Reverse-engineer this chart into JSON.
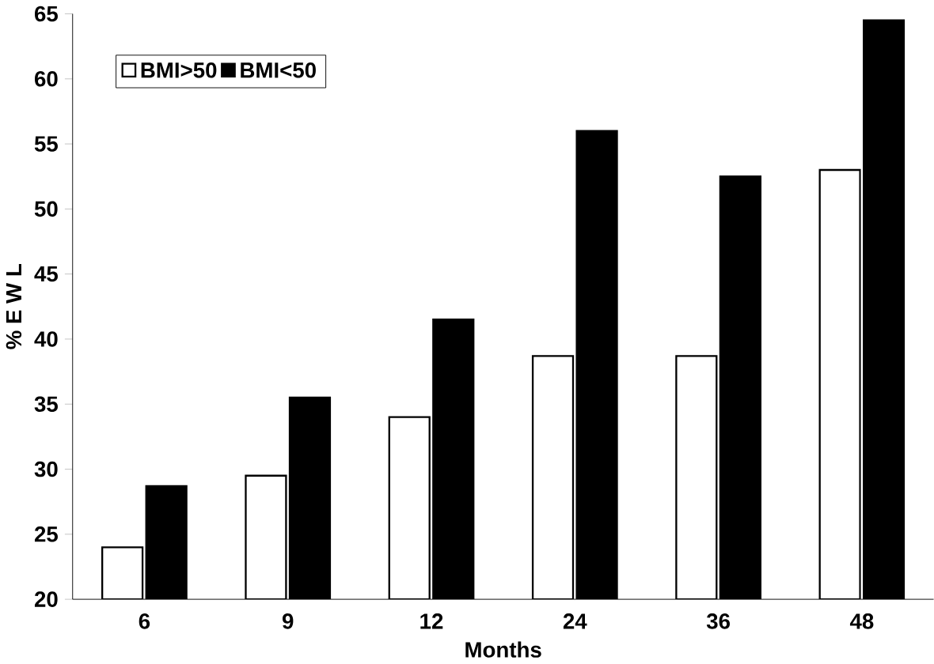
{
  "chart_data": {
    "type": "bar",
    "xlabel": "Months",
    "ylabel": "% E W L",
    "categories": [
      "6",
      "9",
      "12",
      "24",
      "36",
      "48"
    ],
    "series": [
      {
        "name": "BMI>50",
        "color": "#ffffff",
        "values": [
          24,
          29.5,
          34,
          38.7,
          38.7,
          53
        ]
      },
      {
        "name": "BMI<50",
        "color": "#000000",
        "values": [
          28.7,
          35.5,
          41.5,
          56,
          52.5,
          64.5
        ]
      }
    ],
    "ylim": [
      20,
      65
    ],
    "yticks": [
      20,
      25,
      30,
      35,
      40,
      45,
      50,
      55,
      60,
      65
    ],
    "legend": "top left"
  }
}
